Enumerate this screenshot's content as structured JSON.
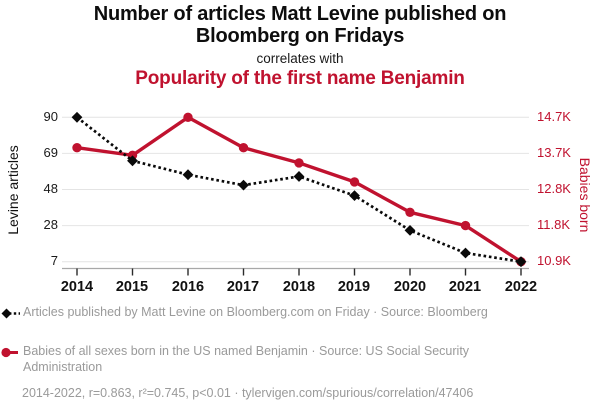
{
  "header": {
    "title": "Number of articles Matt Levine published on Bloomberg on Fridays",
    "relation": "correlates with",
    "subtitle": "Popularity of the first name Benjamin"
  },
  "colors": {
    "accent_red": "#c0122f",
    "series_black": "#0a0a0a",
    "legend_gray": "#9a9a9a",
    "gridline": "#e4e4e4"
  },
  "chart_data": {
    "type": "line",
    "title": "Number of articles Matt Levine published on Bloomberg on Fridays correlates with Popularity of the first name Benjamin",
    "x": [
      2014,
      2015,
      2016,
      2017,
      2018,
      2019,
      2020,
      2021,
      2022
    ],
    "x_axis": {
      "labels": [
        "2014",
        "2015",
        "2016",
        "2017",
        "2018",
        "2019",
        "2020",
        "2021",
        "2022"
      ]
    },
    "left_axis": {
      "label": "Levine articles",
      "ticks": [
        "90",
        "69",
        "48",
        "28",
        "7"
      ],
      "range": [
        7,
        90
      ]
    },
    "right_axis": {
      "label": "Babies born",
      "ticks": [
        "14.7K",
        "13.7K",
        "12.8K",
        "11.8K",
        "10.9K"
      ],
      "range": [
        10900,
        14700
      ]
    },
    "grid": "horizontal-only",
    "legend_position": "below",
    "series": [
      {
        "name": "Articles published by Matt Levine on Bloomberg.com on Friday",
        "axis": "left",
        "color": "#0a0a0a",
        "line": "dotted",
        "marker": "diamond",
        "values": [
          90,
          65,
          57,
          51,
          56,
          45,
          25,
          12,
          7
        ]
      },
      {
        "name": "Babies of all sexes born in the US named Benjamin",
        "axis": "right",
        "color": "#c0122f",
        "line": "solid",
        "marker": "circle",
        "values": [
          13900,
          13700,
          14700,
          13900,
          13500,
          13000,
          12200,
          11850,
          10900
        ]
      }
    ]
  },
  "legend": {
    "items": [
      {
        "label": "Articles published by Matt Levine on Bloomberg.com on Friday · Source: Bloomberg"
      },
      {
        "label": "Babies of all sexes born in the US named Benjamin · Source: US Social Security Administration"
      }
    ]
  },
  "footer": {
    "stats": "2014-2022, r=0.863, r²=0.745, p<0.01 · tylervigen.com/spurious/correlation/47406"
  }
}
